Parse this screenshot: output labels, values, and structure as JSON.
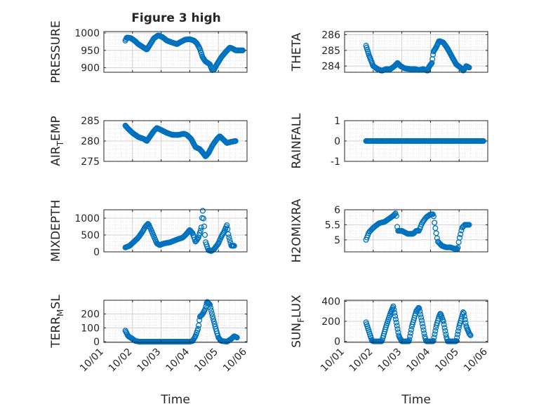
{
  "figure_title": "Figure 3 high",
  "colors": {
    "marker": "#0072BD",
    "axis": "#262626",
    "grid": "#dcdcdc",
    "background": "#ffffff"
  },
  "chart_data": [
    {
      "type": "scatter",
      "ylabel": "PRESSURE",
      "ylim": [
        887,
        1004
      ],
      "yticks": [
        900,
        950,
        1000
      ],
      "xlim": [
        0,
        5
      ],
      "xticks": [
        0,
        1,
        2,
        3,
        4,
        5
      ],
      "xticklabels": [
        "10/01",
        "10/02",
        "10/03",
        "10/04",
        "10/05",
        "10/06"
      ],
      "show_xticklabels": false,
      "xlabel": "",
      "grid": true,
      "knots": [
        [
          0.75,
          978
        ],
        [
          0.8,
          987
        ],
        [
          0.95,
          985
        ],
        [
          1.1,
          976
        ],
        [
          1.2,
          968
        ],
        [
          1.35,
          960
        ],
        [
          1.5,
          952
        ],
        [
          1.6,
          965
        ],
        [
          1.75,
          985
        ],
        [
          1.9,
          993
        ],
        [
          2.05,
          988
        ],
        [
          2.2,
          978
        ],
        [
          2.4,
          972
        ],
        [
          2.55,
          968
        ],
        [
          2.7,
          975
        ],
        [
          2.85,
          981
        ],
        [
          3.0,
          982
        ],
        [
          3.15,
          978
        ],
        [
          3.25,
          970
        ],
        [
          3.35,
          955
        ],
        [
          3.45,
          930
        ],
        [
          3.55,
          918
        ],
        [
          3.7,
          910
        ],
        [
          3.78,
          893
        ],
        [
          3.85,
          895
        ],
        [
          3.95,
          910
        ],
        [
          4.1,
          930
        ],
        [
          4.25,
          945
        ],
        [
          4.4,
          958
        ],
        [
          4.5,
          955
        ],
        [
          4.6,
          950
        ],
        [
          4.75,
          950
        ],
        [
          4.85,
          950
        ]
      ],
      "n": 190
    },
    {
      "type": "scatter",
      "ylabel": "THETA",
      "ylim": [
        283.6,
        286.2
      ],
      "yticks": [
        284,
        285,
        286
      ],
      "xlim": [
        0,
        5
      ],
      "xticks": [
        0,
        1,
        2,
        3,
        4,
        5
      ],
      "xticklabels": [
        "10/01",
        "10/02",
        "10/03",
        "10/04",
        "10/05",
        "10/06"
      ],
      "show_xticklabels": false,
      "xlabel": "",
      "grid": true,
      "knots": [
        [
          0.75,
          285.3
        ],
        [
          0.85,
          284.7
        ],
        [
          1.0,
          284.0
        ],
        [
          1.15,
          283.8
        ],
        [
          1.3,
          283.7
        ],
        [
          1.45,
          283.8
        ],
        [
          1.6,
          283.8
        ],
        [
          1.75,
          284.0
        ],
        [
          1.85,
          284.2
        ],
        [
          1.95,
          284.0
        ],
        [
          2.1,
          283.85
        ],
        [
          2.3,
          283.8
        ],
        [
          2.45,
          283.8
        ],
        [
          2.6,
          283.75
        ],
        [
          2.75,
          283.8
        ],
        [
          2.9,
          283.7
        ],
        [
          2.95,
          283.95
        ],
        [
          3.05,
          284.2
        ],
        [
          3.1,
          284.9
        ],
        [
          3.2,
          285.2
        ],
        [
          3.3,
          285.6
        ],
        [
          3.45,
          285.5
        ],
        [
          3.6,
          285.1
        ],
        [
          3.75,
          284.6
        ],
        [
          3.9,
          284.1
        ],
        [
          4.05,
          283.9
        ],
        [
          4.15,
          283.7
        ],
        [
          4.25,
          284.0
        ],
        [
          4.35,
          283.9
        ]
      ],
      "n": 175
    },
    {
      "type": "scatter",
      "ylabel": "AIR_TEMP",
      "ylabel_parts": [
        "AIR",
        "T",
        "EMP"
      ],
      "ylim": [
        275,
        285
      ],
      "yticks": [
        275,
        280,
        285
      ],
      "xlim": [
        0,
        5
      ],
      "xticks": [
        0,
        1,
        2,
        3,
        4,
        5
      ],
      "xticklabels": [
        "10/01",
        "10/02",
        "10/03",
        "10/04",
        "10/05",
        "10/06"
      ],
      "show_xticklabels": false,
      "xlabel": "",
      "grid": true,
      "knots": [
        [
          0.75,
          283.8
        ],
        [
          0.85,
          283.0
        ],
        [
          1.0,
          282.0
        ],
        [
          1.2,
          281.0
        ],
        [
          1.4,
          280.5
        ],
        [
          1.5,
          280.0
        ],
        [
          1.6,
          281.0
        ],
        [
          1.75,
          282.5
        ],
        [
          1.85,
          283.2
        ],
        [
          2.0,
          282.7
        ],
        [
          2.2,
          282.0
        ],
        [
          2.4,
          281.5
        ],
        [
          2.6,
          281.5
        ],
        [
          2.8,
          281.8
        ],
        [
          2.9,
          281.5
        ],
        [
          3.05,
          280.5
        ],
        [
          3.2,
          278.5
        ],
        [
          3.35,
          278.0
        ],
        [
          3.45,
          277.2
        ],
        [
          3.55,
          276.2
        ],
        [
          3.65,
          277.0
        ],
        [
          3.8,
          279.0
        ],
        [
          3.95,
          280.5
        ],
        [
          4.05,
          281.2
        ],
        [
          4.15,
          280.5
        ],
        [
          4.3,
          279.5
        ],
        [
          4.45,
          279.8
        ],
        [
          4.6,
          280.0
        ]
      ],
      "n": 180
    },
    {
      "type": "scatter",
      "ylabel": "RAINFALL",
      "ylim": [
        -1,
        1
      ],
      "yticks": [
        -1,
        0,
        1
      ],
      "xlim": [
        0,
        5
      ],
      "xticks": [
        0,
        1,
        2,
        3,
        4,
        5
      ],
      "xticklabels": [
        "10/01",
        "10/02",
        "10/03",
        "10/04",
        "10/05",
        "10/06"
      ],
      "show_xticklabels": false,
      "xlabel": "",
      "grid": true,
      "knots": [
        [
          0.75,
          0
        ],
        [
          4.85,
          0
        ]
      ],
      "n": 180
    },
    {
      "type": "scatter",
      "ylabel": "MIXDEPTH",
      "ylim": [
        0,
        1250
      ],
      "yticks": [
        0,
        500,
        1000
      ],
      "xlim": [
        0,
        5
      ],
      "xticks": [
        0,
        1,
        2,
        3,
        4,
        5
      ],
      "xticklabels": [
        "10/01",
        "10/02",
        "10/03",
        "10/04",
        "10/05",
        "10/06"
      ],
      "show_xticklabels": false,
      "xlabel": "",
      "grid": true,
      "knots": [
        [
          0.75,
          130
        ],
        [
          0.9,
          180
        ],
        [
          1.05,
          300
        ],
        [
          1.2,
          420
        ],
        [
          1.35,
          600
        ],
        [
          1.45,
          750
        ],
        [
          1.55,
          840
        ],
        [
          1.65,
          650
        ],
        [
          1.75,
          450
        ],
        [
          1.85,
          250
        ],
        [
          1.95,
          200
        ],
        [
          2.1,
          250
        ],
        [
          2.3,
          280
        ],
        [
          2.45,
          330
        ],
        [
          2.6,
          380
        ],
        [
          2.75,
          420
        ],
        [
          2.85,
          500
        ],
        [
          2.95,
          600
        ],
        [
          3.0,
          650
        ],
        [
          3.1,
          550
        ],
        [
          3.2,
          300
        ],
        [
          3.3,
          420
        ],
        [
          3.4,
          700
        ],
        [
          3.45,
          1250
        ],
        [
          3.5,
          800
        ],
        [
          3.55,
          300
        ],
        [
          3.65,
          50
        ],
        [
          3.75,
          20
        ],
        [
          3.85,
          80
        ],
        [
          4.0,
          250
        ],
        [
          4.1,
          450
        ],
        [
          4.2,
          600
        ],
        [
          4.3,
          800
        ],
        [
          4.35,
          500
        ],
        [
          4.45,
          180
        ],
        [
          4.55,
          180
        ]
      ],
      "n": 150
    },
    {
      "type": "scatter",
      "ylabel": "H2OMIXRA",
      "ylim": [
        4.6,
        6.0
      ],
      "yticks": [
        5,
        5.5,
        6
      ],
      "xlim": [
        0,
        5
      ],
      "xticks": [
        0,
        1,
        2,
        3,
        4,
        5
      ],
      "xticklabels": [
        "10/01",
        "10/02",
        "10/03",
        "10/04",
        "10/05",
        "10/06"
      ],
      "show_xticklabels": false,
      "xlabel": "",
      "grid": true,
      "knots": [
        [
          0.75,
          5.0
        ],
        [
          0.85,
          5.25
        ],
        [
          1.0,
          5.4
        ],
        [
          1.2,
          5.55
        ],
        [
          1.4,
          5.6
        ],
        [
          1.55,
          5.7
        ],
        [
          1.7,
          5.8
        ],
        [
          1.8,
          5.9
        ],
        [
          1.85,
          5.3
        ],
        [
          2.0,
          5.3
        ],
        [
          2.2,
          5.2
        ],
        [
          2.4,
          5.2
        ],
        [
          2.5,
          5.3
        ],
        [
          2.6,
          5.3
        ],
        [
          2.7,
          5.55
        ],
        [
          2.85,
          5.75
        ],
        [
          3.0,
          5.85
        ],
        [
          3.1,
          5.85
        ],
        [
          3.15,
          5.5
        ],
        [
          3.25,
          4.95
        ],
        [
          3.4,
          4.8
        ],
        [
          3.55,
          4.75
        ],
        [
          3.7,
          4.75
        ],
        [
          3.85,
          4.7
        ],
        [
          3.95,
          4.7
        ],
        [
          4.0,
          5.0
        ],
        [
          4.1,
          5.4
        ],
        [
          4.2,
          5.5
        ],
        [
          4.35,
          5.5
        ]
      ],
      "n": 120
    },
    {
      "type": "scatter",
      "ylabel": "TERR_MSL",
      "ylabel_parts": [
        "TERR",
        "M",
        "SL"
      ],
      "ylim": [
        -5,
        300
      ],
      "yticks": [
        0,
        100,
        200
      ],
      "xlim": [
        0,
        5
      ],
      "xticks": [
        0,
        1,
        2,
        3,
        4,
        5
      ],
      "xticklabels": [
        "10/01",
        "10/02",
        "10/03",
        "10/04",
        "10/05",
        "10/06"
      ],
      "show_xticklabels": true,
      "xlabel": "Time",
      "grid": true,
      "knots": [
        [
          0.75,
          80
        ],
        [
          0.85,
          40
        ],
        [
          1.0,
          20
        ],
        [
          1.1,
          5
        ],
        [
          1.25,
          0
        ],
        [
          3.0,
          0
        ],
        [
          3.1,
          5
        ],
        [
          3.2,
          40
        ],
        [
          3.3,
          100
        ],
        [
          3.35,
          180
        ],
        [
          3.45,
          200
        ],
        [
          3.55,
          240
        ],
        [
          3.6,
          290
        ],
        [
          3.7,
          270
        ],
        [
          3.8,
          180
        ],
        [
          3.9,
          100
        ],
        [
          4.0,
          30
        ],
        [
          4.1,
          5
        ],
        [
          4.3,
          0
        ],
        [
          4.45,
          20
        ],
        [
          4.55,
          40
        ],
        [
          4.65,
          30
        ]
      ],
      "n": 170
    },
    {
      "type": "scatter",
      "ylabel": "SUN_FLUX",
      "ylabel_parts": [
        "SUN",
        "F",
        "LUX"
      ],
      "ylim": [
        -10,
        410
      ],
      "yticks": [
        0,
        200,
        400
      ],
      "xlim": [
        0,
        5
      ],
      "xticks": [
        0,
        1,
        2,
        3,
        4,
        5
      ],
      "xticklabels": [
        "10/01",
        "10/02",
        "10/03",
        "10/04",
        "10/05",
        "10/06"
      ],
      "show_xticklabels": true,
      "xlabel": "Time",
      "grid": true,
      "knots": [
        [
          0.75,
          190
        ],
        [
          0.85,
          100
        ],
        [
          0.95,
          10
        ],
        [
          1.0,
          0
        ],
        [
          1.3,
          0
        ],
        [
          1.45,
          150
        ],
        [
          1.6,
          280
        ],
        [
          1.7,
          350
        ],
        [
          1.8,
          200
        ],
        [
          1.9,
          50
        ],
        [
          2.0,
          0
        ],
        [
          2.25,
          0
        ],
        [
          2.35,
          150
        ],
        [
          2.5,
          300
        ],
        [
          2.6,
          340
        ],
        [
          2.7,
          200
        ],
        [
          2.8,
          50
        ],
        [
          2.85,
          0
        ],
        [
          3.1,
          0
        ],
        [
          3.2,
          150
        ],
        [
          3.3,
          250
        ],
        [
          3.35,
          280
        ],
        [
          3.45,
          200
        ],
        [
          3.55,
          50
        ],
        [
          3.6,
          0
        ],
        [
          3.9,
          0
        ],
        [
          4.0,
          150
        ],
        [
          4.1,
          250
        ],
        [
          4.15,
          300
        ],
        [
          4.25,
          150
        ],
        [
          4.35,
          80
        ],
        [
          4.4,
          60
        ]
      ],
      "n": 170
    }
  ]
}
